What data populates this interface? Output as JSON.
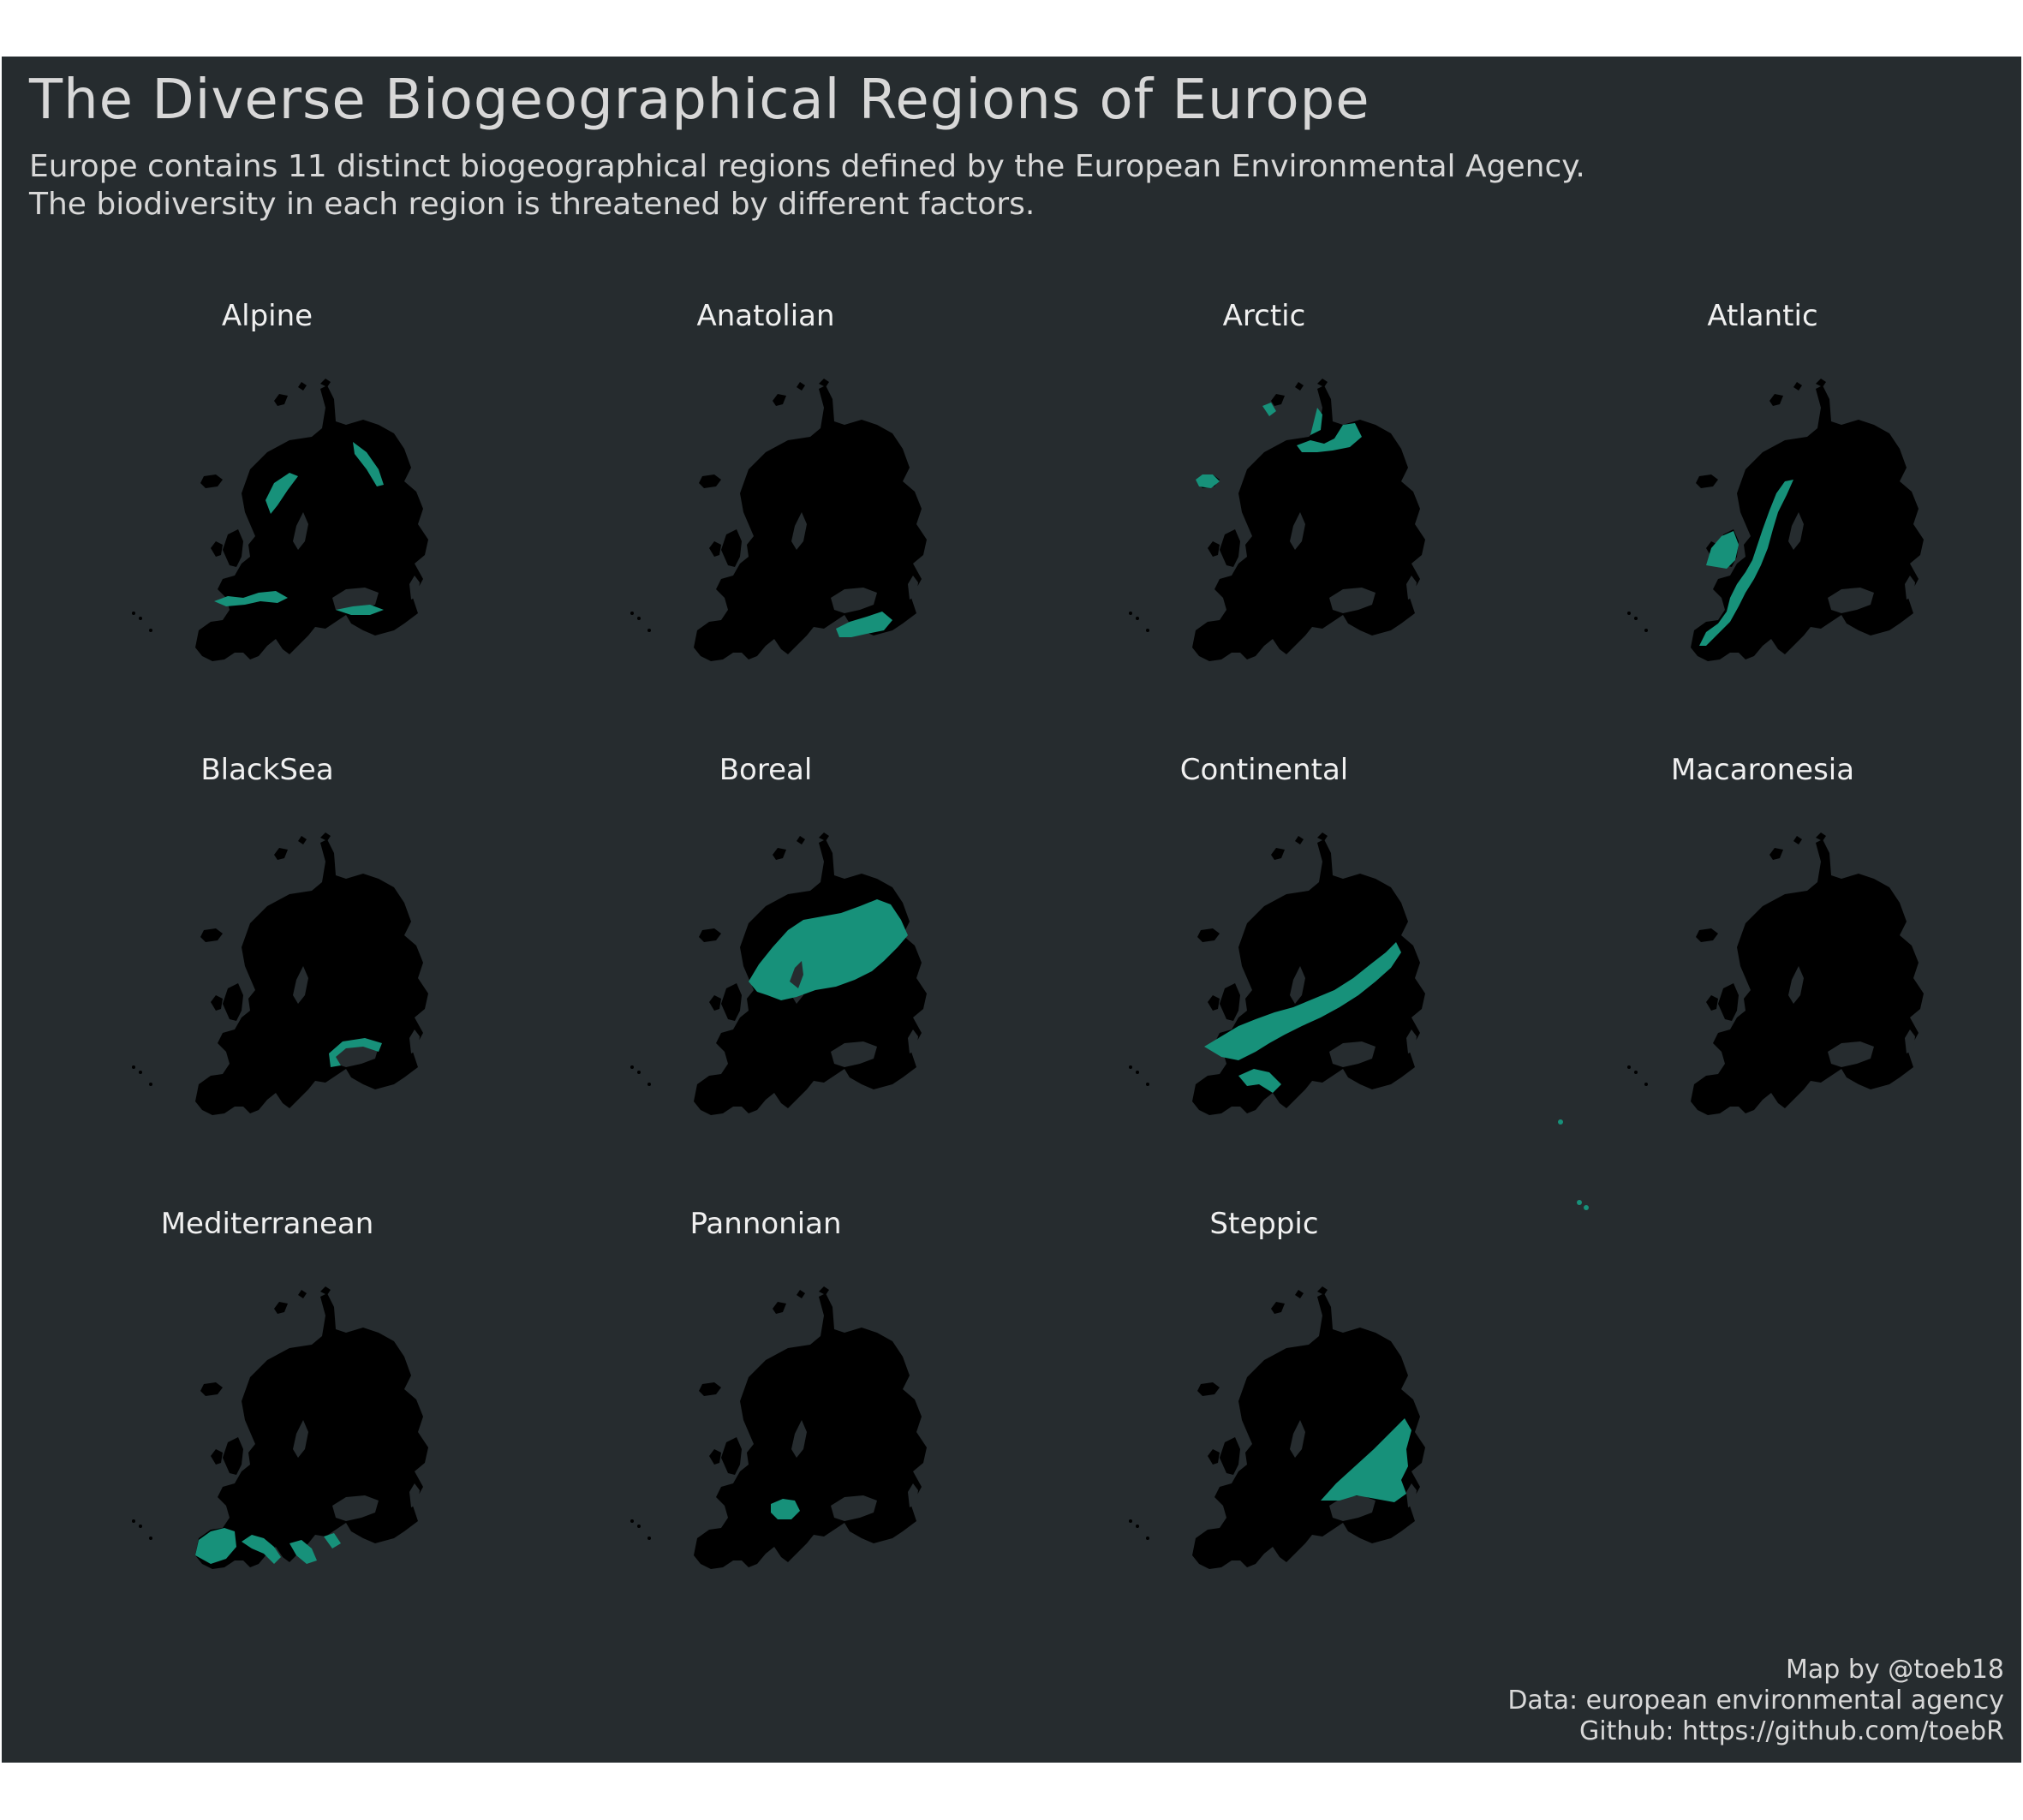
{
  "title": "The Diverse Biogeographical Regions of Europe",
  "subtitle": [
    "Europe contains 11 distinct biogeographical regions defined by the European Environmental Agency.",
    "The biodiversity in each region is threatened by different factors."
  ],
  "caption": [
    "Map by @toeb18",
    "Data: european environmental agency",
    "Github: https://github.com/toebR"
  ],
  "colors": {
    "background": "#262c2f",
    "land": "#000000",
    "highlight": "#17917a",
    "text": "#d8d8d8"
  },
  "regions": [
    {
      "name": "Alpine"
    },
    {
      "name": "Anatolian"
    },
    {
      "name": "Arctic"
    },
    {
      "name": "Atlantic"
    },
    {
      "name": "BlackSea"
    },
    {
      "name": "Boreal"
    },
    {
      "name": "Continental"
    },
    {
      "name": "Macaronesia"
    },
    {
      "name": "Mediterranean"
    },
    {
      "name": "Pannonian"
    },
    {
      "name": "Steppic"
    }
  ]
}
